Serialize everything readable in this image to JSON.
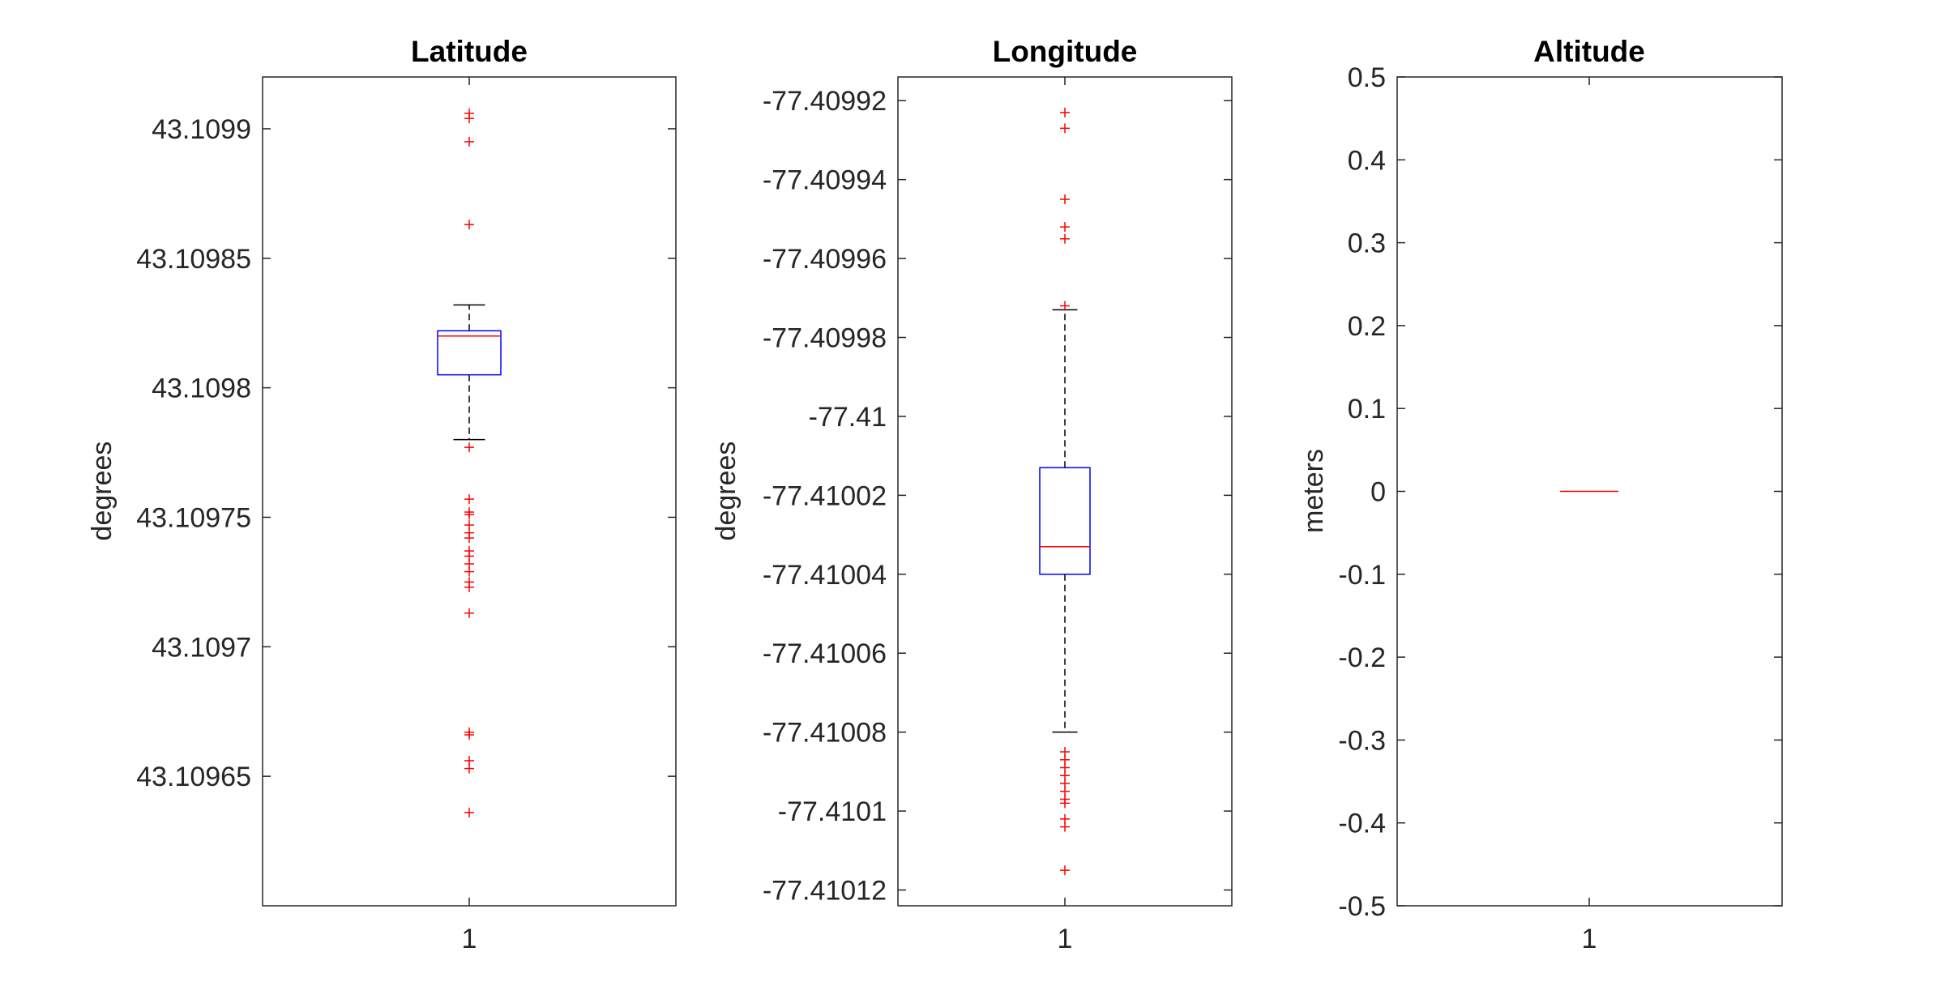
{
  "figure": {
    "background": "#ffffff"
  },
  "style": {
    "box_color": "#0000ff",
    "median_color": "#ff0000",
    "whisker_color": "#000000",
    "outlier_color": "#ff0000",
    "outlier_marker": "+",
    "axis_color": "#262626"
  },
  "chart_data": [
    {
      "type": "boxplot",
      "title": "Latitude",
      "xlabel": "",
      "ylabel": "degrees",
      "categories": [
        "1"
      ],
      "ylim": [
        43.1096,
        43.10992
      ],
      "yticks": [
        43.10965,
        43.1097,
        43.10975,
        43.1098,
        43.10985,
        43.1099
      ],
      "ytick_labels": [
        "43.10965",
        "43.1097",
        "43.10975",
        "43.1098",
        "43.10985",
        "43.1099"
      ],
      "grid": false,
      "box": {
        "whisker_low": 43.10978,
        "q1": 43.109805,
        "median": 43.10982,
        "q3": 43.109822,
        "whisker_high": 43.109832
      },
      "outliers": [
        43.109906,
        43.109904,
        43.109895,
        43.109863,
        43.109777,
        43.109757,
        43.109752,
        43.109751,
        43.109747,
        43.109744,
        43.109742,
        43.109737,
        43.109735,
        43.109732,
        43.109729,
        43.109725,
        43.109723,
        43.109713,
        43.109667,
        43.109666,
        43.109656,
        43.109653,
        43.109636
      ]
    },
    {
      "type": "boxplot",
      "title": "Longitude",
      "xlabel": "",
      "ylabel": "degrees",
      "categories": [
        "1"
      ],
      "ylim": [
        -77.410124,
        -77.409914
      ],
      "yticks": [
        -77.41012,
        -77.4101,
        -77.41008,
        -77.41006,
        -77.41004,
        -77.41002,
        -77.41,
        -77.40998,
        -77.40996,
        -77.40994,
        -77.40992
      ],
      "ytick_labels": [
        "-77.41012",
        "-77.4101",
        "-77.41008",
        "-77.41006",
        "-77.41004",
        "-77.41002",
        "-77.41",
        "-77.40998",
        "-77.40996",
        "-77.40994",
        "-77.40992"
      ],
      "grid": false,
      "box": {
        "whisker_low": -77.41008,
        "q1": -77.41004,
        "median": -77.410033,
        "q3": -77.410013,
        "whisker_high": -77.409973
      },
      "outliers": [
        -77.409923,
        -77.409927,
        -77.409945,
        -77.409952,
        -77.409955,
        -77.409972,
        -77.410085,
        -77.410087,
        -77.410089,
        -77.410091,
        -77.410093,
        -77.410095,
        -77.410097,
        -77.410098,
        -77.410102,
        -77.410104,
        -77.410115
      ]
    },
    {
      "type": "boxplot",
      "title": "Altitude",
      "xlabel": "",
      "ylabel": "meters",
      "categories": [
        "1"
      ],
      "ylim": [
        -0.5,
        0.5
      ],
      "yticks": [
        -0.5,
        -0.4,
        -0.3,
        -0.2,
        -0.1,
        0,
        0.1,
        0.2,
        0.3,
        0.4,
        0.5
      ],
      "ytick_labels": [
        "-0.5",
        "-0.4",
        "-0.3",
        "-0.2",
        "-0.1",
        "0",
        "0.1",
        "0.2",
        "0.3",
        "0.4",
        "0.5"
      ],
      "grid": false,
      "box": {
        "whisker_low": 0,
        "q1": 0,
        "median": 0,
        "q3": 0,
        "whisker_high": 0
      },
      "outliers": []
    }
  ]
}
